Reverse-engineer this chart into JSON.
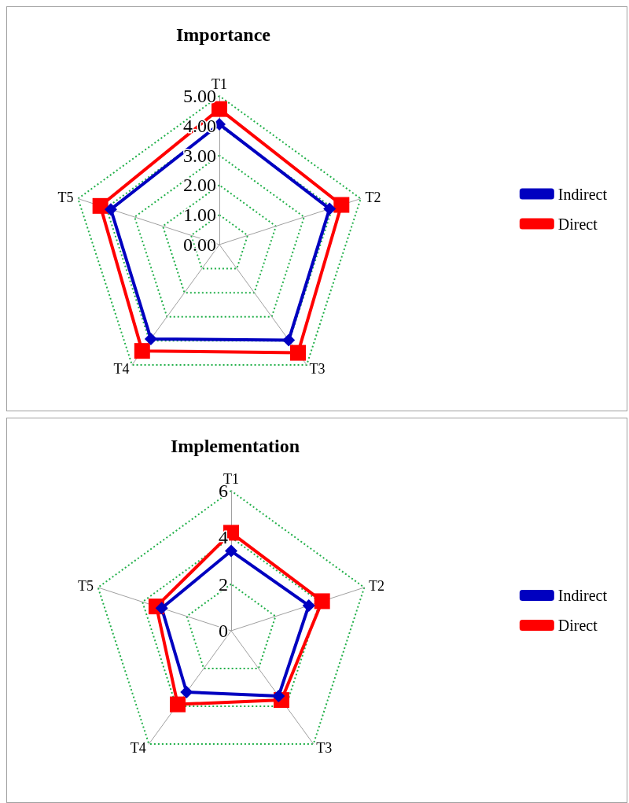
{
  "chart_data": [
    {
      "type": "radar",
      "title": "Importance",
      "categories": [
        "T1",
        "T2",
        "T3",
        "T4",
        "T5"
      ],
      "series": [
        {
          "name": "Indirect",
          "color": "#0000c0",
          "marker": "diamond",
          "values": [
            4.05,
            3.9,
            3.97,
            3.92,
            3.84
          ]
        },
        {
          "name": "Direct",
          "color": "#ff0000",
          "marker": "square",
          "values": [
            4.56,
            4.32,
            4.5,
            4.42,
            4.21
          ]
        }
      ],
      "ylim": [
        0,
        5
      ],
      "yticks": [
        {
          "value": 0,
          "label": "0.00"
        },
        {
          "value": 1,
          "label": "1.00"
        },
        {
          "value": 2,
          "label": "2.00"
        },
        {
          "value": 3,
          "label": "3.00"
        },
        {
          "value": 4,
          "label": "4.00"
        },
        {
          "value": 5,
          "label": "5.00"
        }
      ],
      "grid": true,
      "legend": "right"
    },
    {
      "type": "radar",
      "title": "Implementation",
      "categories": [
        "T1",
        "T2",
        "T3",
        "T4",
        "T5"
      ],
      "series": [
        {
          "name": "Indirect",
          "color": "#0000c0",
          "marker": "diamond",
          "values": [
            3.42,
            3.5,
            3.46,
            3.25,
            3.13
          ]
        },
        {
          "name": "Direct",
          "color": "#ff0000",
          "marker": "square",
          "values": [
            4.2,
            4.1,
            3.67,
            3.9,
            3.37
          ]
        }
      ],
      "ylim": [
        0,
        6
      ],
      "yticks": [
        0,
        2,
        4,
        6
      ],
      "grid": true,
      "legend": "right"
    }
  ]
}
